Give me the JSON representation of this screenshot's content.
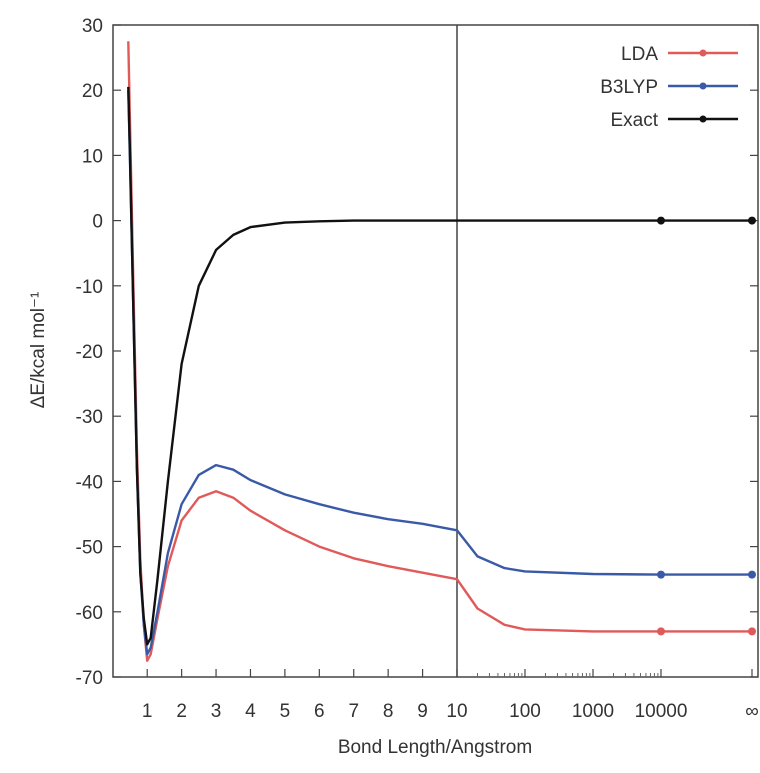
{
  "chart_data": {
    "type": "line",
    "title": "",
    "xlabel": "Bond Length/Angstrom",
    "ylabel": "ΔE/kcal mol⁻¹",
    "ylim": [
      -70,
      30
    ],
    "grid": false,
    "legend_position": "top-right",
    "x_scale": "piecewise: linear 0.4–10, logarithmic 10–10000, then ∞",
    "x_ticks": [
      "1",
      "2",
      "3",
      "4",
      "5",
      "6",
      "7",
      "8",
      "9",
      "10",
      "100",
      "1000",
      "10000",
      "∞"
    ],
    "y_ticks": [
      "30",
      "20",
      "10",
      "0",
      "-10",
      "-20",
      "-30",
      "-40",
      "-50",
      "-60",
      "-70"
    ],
    "divider_at_x": 10,
    "series": [
      {
        "name": "LDA",
        "color": "#e05a5a",
        "points": [
          [
            0.45,
            27.5
          ],
          [
            0.5,
            15
          ],
          [
            0.6,
            -10
          ],
          [
            0.7,
            -35
          ],
          [
            0.8,
            -52
          ],
          [
            0.9,
            -62
          ],
          [
            1.0,
            -67.5
          ],
          [
            1.1,
            -66.5
          ],
          [
            1.3,
            -61
          ],
          [
            1.6,
            -53
          ],
          [
            2.0,
            -46
          ],
          [
            2.5,
            -42.5
          ],
          [
            3.0,
            -41.5
          ],
          [
            3.5,
            -42.5
          ],
          [
            4.0,
            -44.5
          ],
          [
            5.0,
            -47.5
          ],
          [
            6.0,
            -50
          ],
          [
            7.0,
            -51.8
          ],
          [
            8.0,
            -53
          ],
          [
            9.0,
            -54
          ],
          [
            10.0,
            -55
          ],
          [
            20,
            -59.5
          ],
          [
            50,
            -62
          ],
          [
            100,
            -62.7
          ],
          [
            1000,
            -63
          ],
          [
            10000,
            -63
          ],
          [
            "∞",
            -63
          ]
        ],
        "markers_at": [
          10000,
          "∞"
        ]
      },
      {
        "name": "B3LYP",
        "color": "#3a5aa8",
        "points": [
          [
            0.45,
            20
          ],
          [
            0.5,
            9
          ],
          [
            0.6,
            -14
          ],
          [
            0.7,
            -38
          ],
          [
            0.8,
            -54
          ],
          [
            0.9,
            -62
          ],
          [
            1.0,
            -66.5
          ],
          [
            1.1,
            -65.5
          ],
          [
            1.3,
            -60
          ],
          [
            1.6,
            -51
          ],
          [
            2.0,
            -43.5
          ],
          [
            2.5,
            -39
          ],
          [
            3.0,
            -37.5
          ],
          [
            3.5,
            -38.2
          ],
          [
            4.0,
            -39.8
          ],
          [
            5.0,
            -42
          ],
          [
            6.0,
            -43.5
          ],
          [
            7.0,
            -44.8
          ],
          [
            8.0,
            -45.8
          ],
          [
            9.0,
            -46.5
          ],
          [
            10.0,
            -47.5
          ],
          [
            20,
            -51.5
          ],
          [
            50,
            -53.3
          ],
          [
            100,
            -53.8
          ],
          [
            1000,
            -54.2
          ],
          [
            10000,
            -54.3
          ],
          [
            "∞",
            -54.3
          ]
        ],
        "markers_at": [
          10000,
          "∞"
        ]
      },
      {
        "name": "Exact",
        "color": "#111111",
        "points": [
          [
            0.45,
            20.5
          ],
          [
            0.5,
            10
          ],
          [
            0.6,
            -14
          ],
          [
            0.7,
            -38
          ],
          [
            0.8,
            -54
          ],
          [
            0.9,
            -61
          ],
          [
            1.0,
            -65
          ],
          [
            1.1,
            -64
          ],
          [
            1.3,
            -55
          ],
          [
            1.6,
            -40
          ],
          [
            2.0,
            -22
          ],
          [
            2.5,
            -10
          ],
          [
            3.0,
            -4.5
          ],
          [
            3.5,
            -2.2
          ],
          [
            4.0,
            -1.0
          ],
          [
            5.0,
            -0.3
          ],
          [
            6.0,
            -0.1
          ],
          [
            7.0,
            0
          ],
          [
            8.0,
            0
          ],
          [
            9.0,
            0
          ],
          [
            10.0,
            0
          ],
          [
            100,
            0
          ],
          [
            1000,
            0
          ],
          [
            10000,
            0
          ],
          [
            "∞",
            0
          ]
        ],
        "markers_at": [
          10000,
          "∞"
        ]
      }
    ]
  }
}
